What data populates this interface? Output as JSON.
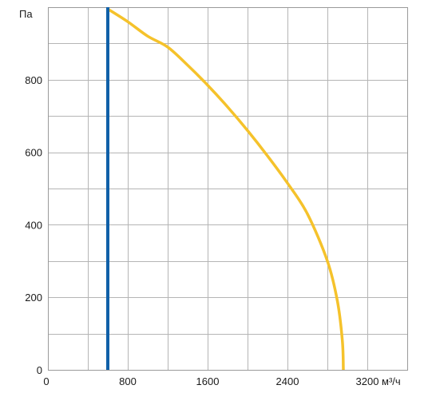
{
  "chart_data": {
    "type": "line",
    "title": "",
    "xlabel": "м³/ч",
    "ylabel": "Па",
    "xlim": [
      0,
      3600
    ],
    "ylim": [
      0,
      1000
    ],
    "x_ticks": [
      {
        "value": 0,
        "label": "0"
      },
      {
        "value": 800,
        "label": "800"
      },
      {
        "value": 1600,
        "label": "1600"
      },
      {
        "value": 2400,
        "label": "2400"
      },
      {
        "value": 3200,
        "label": "3200"
      }
    ],
    "y_ticks": [
      {
        "value": 0,
        "label": "0"
      },
      {
        "value": 200,
        "label": "200"
      },
      {
        "value": 400,
        "label": "400"
      },
      {
        "value": 600,
        "label": "600"
      },
      {
        "value": 800,
        "label": "800"
      }
    ],
    "x_grid_step": 400,
    "y_grid_step": 100,
    "grid": true,
    "legend": "none",
    "series": [
      {
        "color": "#f5c22b",
        "x": [
          600,
          800,
          1000,
          1200,
          1400,
          1600,
          1800,
          2000,
          2200,
          2400,
          2600,
          2800,
          2900,
          2950,
          2960
        ],
        "y": [
          995,
          960,
          920,
          890,
          840,
          785,
          725,
          660,
          590,
          515,
          430,
          300,
          190,
          80,
          0
        ]
      },
      {
        "color": "#1060a8",
        "x": [
          600,
          600
        ],
        "y": [
          0,
          1000
        ]
      }
    ]
  }
}
